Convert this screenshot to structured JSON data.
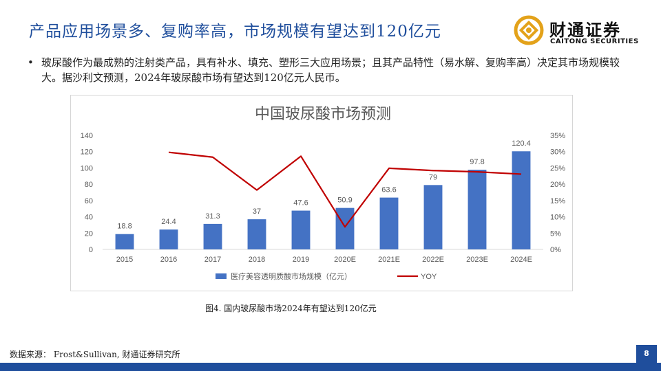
{
  "slide": {
    "title": "产品应用场景多、复购率高，市场规模有望达到120亿元",
    "bullet": "玻尿酸作为最成熟的注射类产品，具有补水、填充、塑形三大应用场景；且其产品特性（易水解、复购率高）决定其市场规模较大。据沙利文预测，2024年玻尿酸市场有望达到120亿元人民币。",
    "caption": "图4. 国内玻尿酸市场2024年有望达到120亿元",
    "source": "数据来源： Frost&Sullivan, 财通证券研究所",
    "page_number": "8",
    "bullet_symbol": "•"
  },
  "logo": {
    "name_cn": "财通证券",
    "name_en": "CAITONG SECURITIES"
  },
  "colors": {
    "title": "#1f4e9c",
    "bar": "#4472c4",
    "line": "#c00000",
    "grid": "#d9d9d9",
    "axis_text": "#595959",
    "logo_gold": "#e3a21a"
  },
  "chart_data": {
    "type": "bar",
    "title": "中国玻尿酸市场预测",
    "categories": [
      "2015",
      "2016",
      "2017",
      "2018",
      "2019",
      "2020E",
      "2021E",
      "2022E",
      "2023E",
      "2024E"
    ],
    "series": [
      {
        "name": "医疗美容透明质酸市场规模（亿元）",
        "type": "bar",
        "axis": "left",
        "values": [
          18.8,
          24.4,
          31.3,
          37,
          47.6,
          50.9,
          63.6,
          79,
          97.8,
          120.4
        ],
        "labels": [
          "18.8",
          "24.4",
          "31.3",
          "37",
          "47.6",
          "50.9",
          "63.6",
          "79",
          "97.8",
          "120.4"
        ]
      },
      {
        "name": "YOY",
        "type": "line",
        "axis": "right",
        "values": [
          null,
          29.8,
          28.3,
          18.2,
          28.6,
          6.9,
          24.9,
          24.2,
          23.8,
          23.1
        ]
      }
    ],
    "y_left": {
      "min": 0,
      "max": 140,
      "ticks": [
        "0",
        "20",
        "40",
        "60",
        "80",
        "100",
        "120",
        "140"
      ]
    },
    "y_right": {
      "min": 0,
      "max": 35,
      "ticks": [
        "0%",
        "5%",
        "10%",
        "15%",
        "20%",
        "25%",
        "30%",
        "35%"
      ]
    },
    "grid": false,
    "legend_position": "bottom"
  }
}
